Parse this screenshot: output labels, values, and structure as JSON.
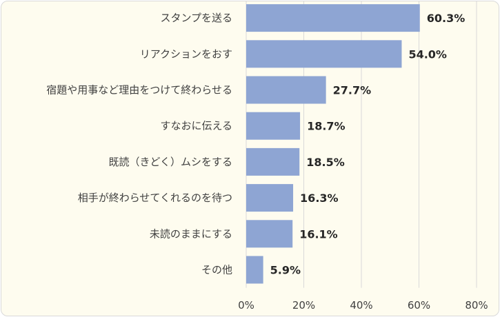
{
  "chart_data": {
    "type": "bar",
    "orientation": "horizontal",
    "categories": [
      "スタンプを送る",
      "リアクションをおす",
      "宿題や用事など理由をつけて終わらせる",
      "すなおに伝える",
      "既読（きどく）ムシをする",
      "相手が終わらせてくれるのを待つ",
      "未読のままにする",
      "その他"
    ],
    "values": [
      60.3,
      54.0,
      27.7,
      18.7,
      18.5,
      16.3,
      16.1,
      5.9
    ],
    "value_labels": [
      "60.3%",
      "54.0%",
      "27.7%",
      "18.7%",
      "18.5%",
      "16.3%",
      "16.1%",
      "5.9%"
    ],
    "xlim": [
      0,
      80
    ],
    "xticks": [
      0,
      20,
      40,
      60,
      80
    ],
    "xtick_labels": [
      "0%",
      "20%",
      "40%",
      "60%",
      "80%"
    ],
    "grid": true,
    "bar_color": "#8ea5d3",
    "grid_color": "#d9d9d9"
  }
}
